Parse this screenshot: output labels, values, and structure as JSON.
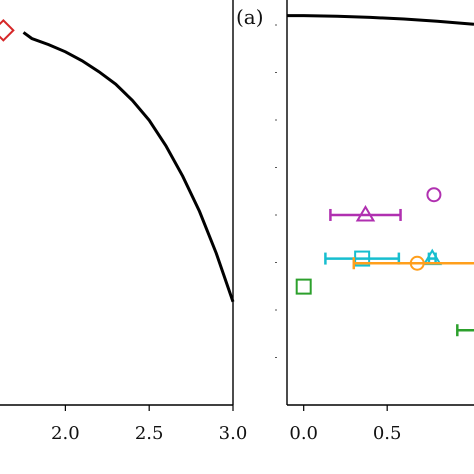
{
  "chart_data": [
    {
      "type": "line",
      "panel": "left",
      "title": "",
      "xlabel": "",
      "ylabel": "",
      "xlim": [
        1.61,
        3.0
      ],
      "ylim": [
        0.0,
        1.0
      ],
      "x_ticks": [
        2.0,
        2.5,
        3.0
      ],
      "x_tick_labels": [
        "2.0",
        "2.5",
        "3.0"
      ],
      "series": [
        {
          "style": "solid-black",
          "x": [
            1.75,
            1.8,
            1.9,
            2.0,
            2.1,
            2.2,
            2.3,
            2.4,
            2.5,
            2.6,
            2.7,
            2.8,
            2.9,
            3.0
          ],
          "y": [
            0.92,
            0.905,
            0.89,
            0.872,
            0.85,
            0.823,
            0.792,
            0.752,
            0.703,
            0.64,
            0.565,
            0.478,
            0.375,
            0.255
          ]
        }
      ],
      "markers": [
        {
          "shape": "diamond",
          "color": "#d62728",
          "x": 1.63,
          "y": 0.925
        }
      ]
    },
    {
      "type": "scatter",
      "panel": "right",
      "panel_label": "(a)",
      "title": "",
      "xlabel": "",
      "ylabel": "",
      "xlim": [
        -0.1,
        1.02
      ],
      "ylim": [
        -1.0,
        0.3
      ],
      "x_ticks": [
        0.0,
        0.5
      ],
      "x_tick_labels": [
        "0.0",
        "0.5"
      ],
      "line": {
        "style": "solid-black",
        "x": [
          -0.1,
          0.0,
          0.2,
          0.4,
          0.6,
          0.8,
          1.0,
          1.02
        ],
        "y": [
          0.25,
          0.25,
          0.248,
          0.244,
          0.239,
          0.232,
          0.223,
          0.222
        ]
      },
      "points": [
        {
          "shape": "circle",
          "color": "#b030b0",
          "x": 0.78,
          "y": -0.325,
          "xerr": 0.0
        },
        {
          "shape": "triangle",
          "color": "#b030b0",
          "x": 0.37,
          "y": -0.39,
          "xerr": 0.21
        },
        {
          "shape": "square",
          "color": "#17becf",
          "x": 0.35,
          "y": -0.53,
          "xerr": 0.22
        },
        {
          "shape": "triangle",
          "color": "#17becf",
          "x": 0.77,
          "y": -0.53,
          "xerr": 0.02
        },
        {
          "shape": "circle",
          "color": "#ff9f1c",
          "x": 0.68,
          "y": -0.545,
          "xerr": 0.38
        },
        {
          "shape": "square",
          "color": "#2ca02c",
          "x": 0.0,
          "y": -0.62,
          "xerr": 0.0
        },
        {
          "shape": "cap",
          "color": "#2ca02c",
          "x": 1.02,
          "y": -0.76,
          "xerr": 0.1
        }
      ]
    }
  ]
}
